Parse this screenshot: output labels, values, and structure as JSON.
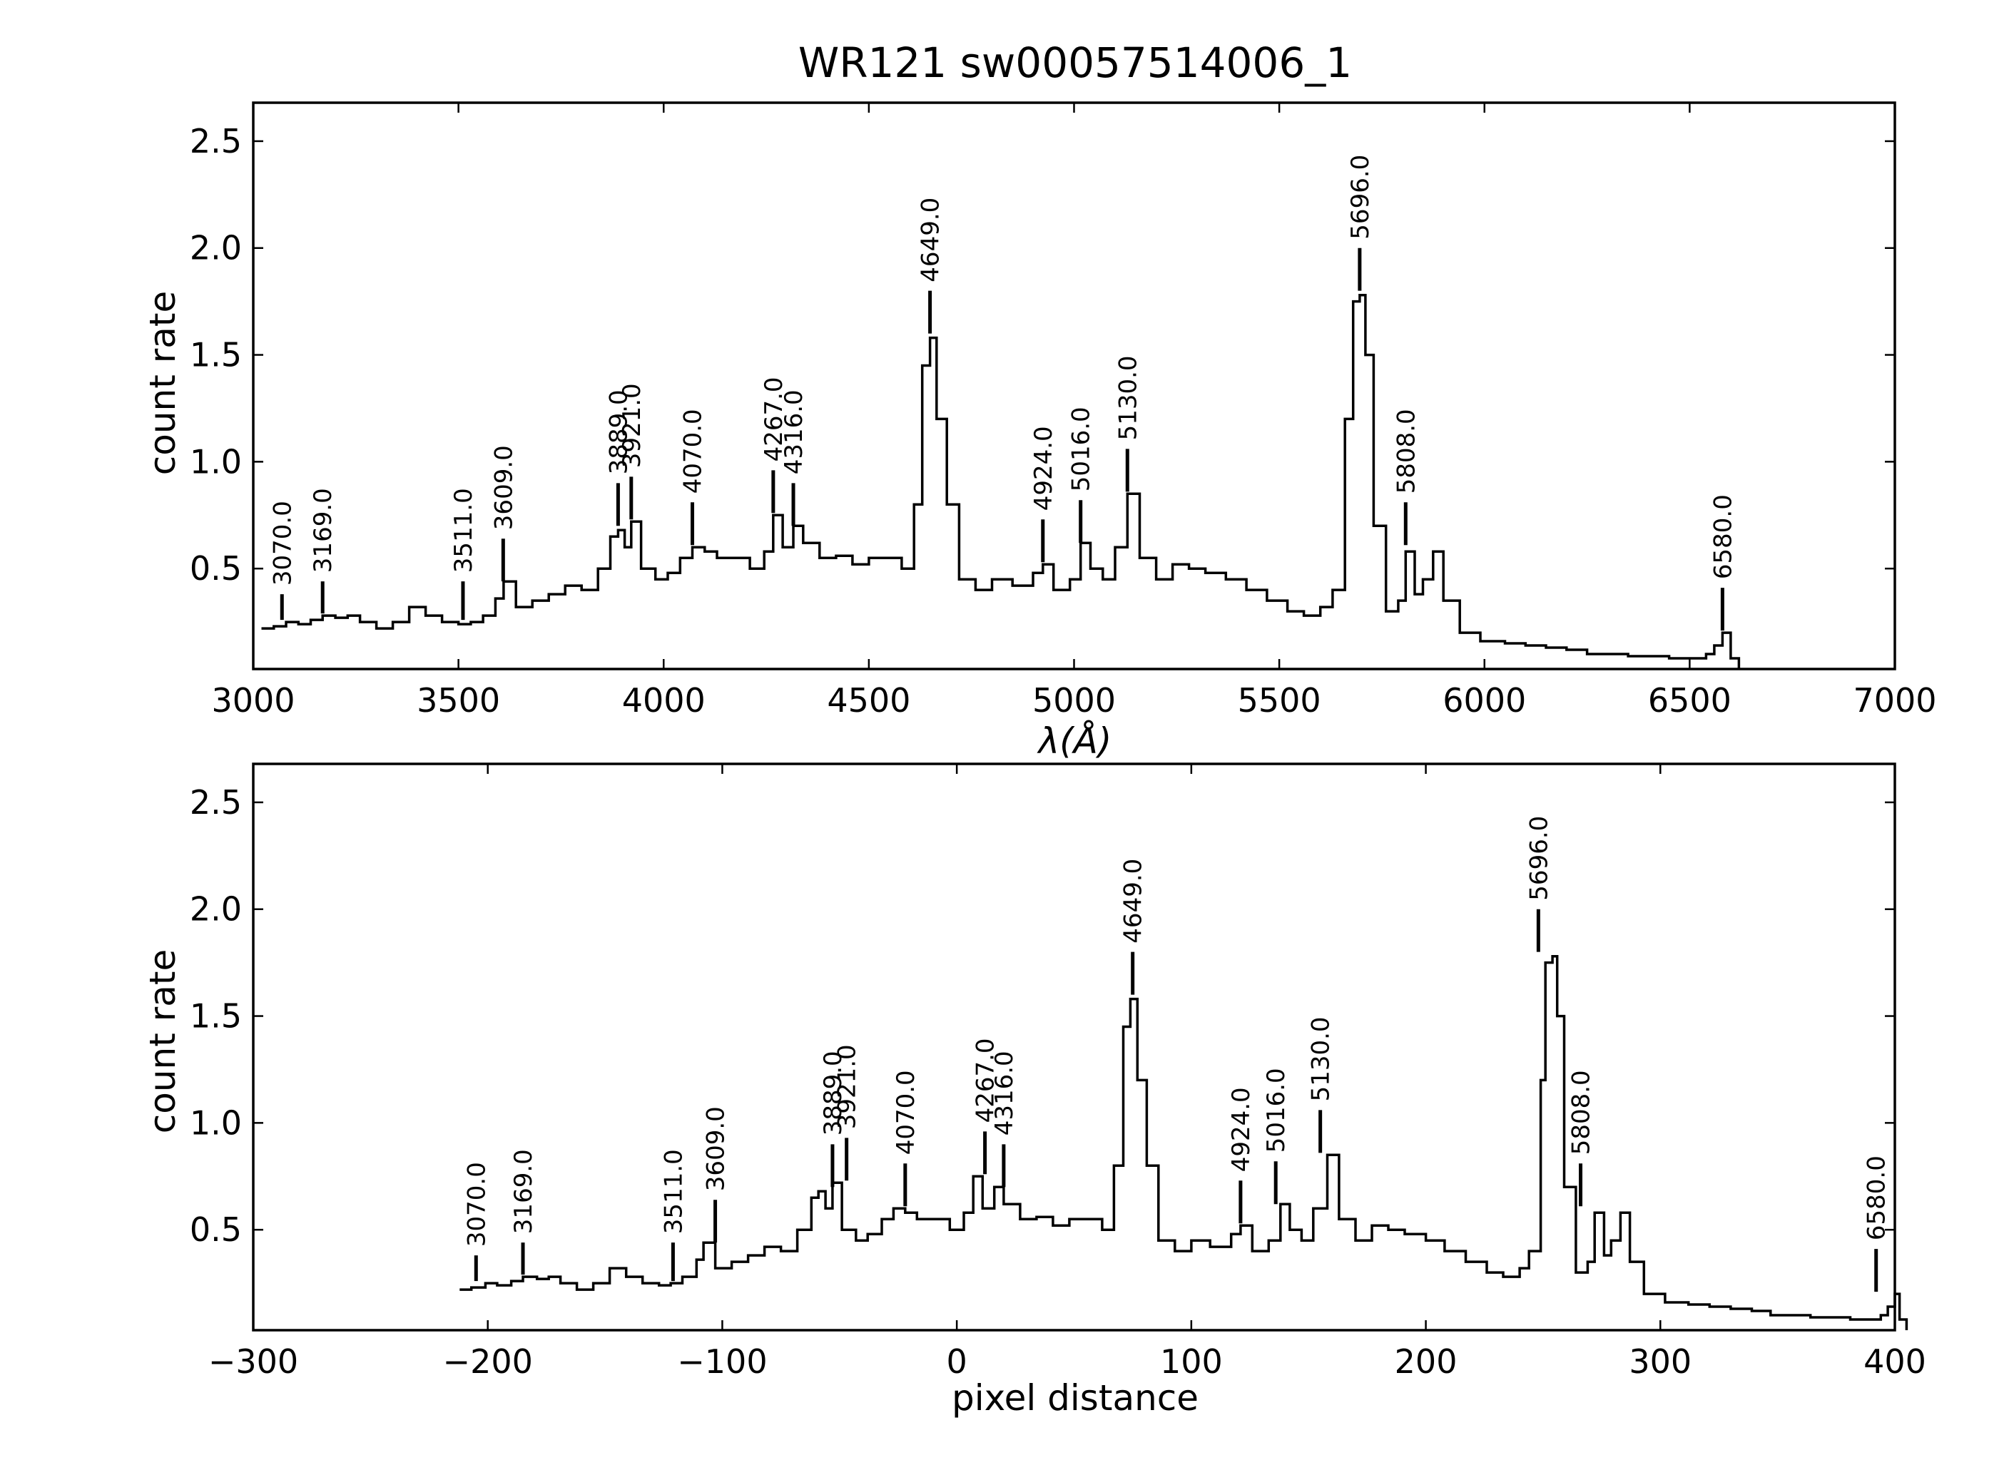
{
  "chart_data": [
    {
      "type": "line",
      "title": "WR121  sw00057514006_1",
      "xlabel": "λ(Å)",
      "ylabel": "count rate",
      "xlim": [
        3000,
        7000
      ],
      "ylim": [
        0.03,
        2.68
      ],
      "xticks": [
        3000,
        3500,
        4000,
        4500,
        5000,
        5500,
        6000,
        6500,
        7000
      ],
      "xtick_labels": [
        "3000",
        "3500",
        "4000",
        "4500",
        "5000",
        "5500",
        "6000",
        "6500",
        "7000"
      ],
      "yticks": [
        0.5,
        1.0,
        1.5,
        2.0,
        2.5
      ],
      "ytick_labels": [
        "0.5",
        "1.0",
        "1.5",
        "2.0",
        "2.5"
      ],
      "grid": false,
      "series": [
        {
          "x": [
            3020,
            3050,
            3080,
            3110,
            3140,
            3169,
            3200,
            3230,
            3260,
            3300,
            3340,
            3380,
            3420,
            3460,
            3500,
            3530,
            3560,
            3590,
            3610,
            3640,
            3680,
            3720,
            3760,
            3800,
            3840,
            3870,
            3889,
            3905,
            3921,
            3945,
            3980,
            4010,
            4040,
            4070,
            4100,
            4130,
            4170,
            4210,
            4245,
            4267,
            4290,
            4316,
            4340,
            4380,
            4420,
            4460,
            4500,
            4540,
            4580,
            4610,
            4630,
            4649,
            4665,
            4690,
            4720,
            4760,
            4800,
            4850,
            4900,
            4924,
            4950,
            4990,
            5016,
            5040,
            5070,
            5100,
            5130,
            5160,
            5200,
            5240,
            5280,
            5320,
            5370,
            5420,
            5470,
            5520,
            5560,
            5600,
            5630,
            5660,
            5680,
            5696,
            5710,
            5730,
            5760,
            5790,
            5808,
            5830,
            5850,
            5875,
            5900,
            5940,
            5990,
            6050,
            6100,
            6150,
            6200,
            6250,
            6300,
            6350,
            6400,
            6450,
            6500,
            6540,
            6560,
            6580,
            6600,
            6620
          ],
          "y": [
            0.22,
            0.23,
            0.25,
            0.24,
            0.26,
            0.28,
            0.27,
            0.28,
            0.25,
            0.22,
            0.25,
            0.32,
            0.28,
            0.25,
            0.24,
            0.25,
            0.28,
            0.36,
            0.44,
            0.32,
            0.35,
            0.38,
            0.42,
            0.4,
            0.5,
            0.65,
            0.68,
            0.6,
            0.72,
            0.5,
            0.45,
            0.48,
            0.55,
            0.6,
            0.58,
            0.55,
            0.55,
            0.5,
            0.58,
            0.75,
            0.6,
            0.7,
            0.62,
            0.55,
            0.56,
            0.52,
            0.55,
            0.55,
            0.5,
            0.8,
            1.45,
            1.58,
            1.2,
            0.8,
            0.45,
            0.4,
            0.45,
            0.42,
            0.48,
            0.52,
            0.4,
            0.45,
            0.62,
            0.5,
            0.45,
            0.6,
            0.85,
            0.55,
            0.45,
            0.52,
            0.5,
            0.48,
            0.45,
            0.4,
            0.35,
            0.3,
            0.28,
            0.32,
            0.4,
            1.2,
            1.75,
            1.78,
            1.5,
            0.7,
            0.3,
            0.35,
            0.58,
            0.38,
            0.45,
            0.58,
            0.35,
            0.2,
            0.16,
            0.15,
            0.14,
            0.13,
            0.12,
            0.1,
            0.1,
            0.09,
            0.09,
            0.08,
            0.08,
            0.1,
            0.14,
            0.2,
            0.08,
            0.03
          ]
        }
      ],
      "annotations": [
        {
          "x": 3070,
          "label": "3070.0",
          "tip": 0.38,
          "base": 0.26
        },
        {
          "x": 3169,
          "label": "3169.0",
          "tip": 0.44,
          "base": 0.29
        },
        {
          "x": 3511,
          "label": "3511.0",
          "tip": 0.44,
          "base": 0.26
        },
        {
          "x": 3609,
          "label": "3609.0",
          "tip": 0.64,
          "base": 0.44
        },
        {
          "x": 3889,
          "label": "3889.0",
          "tip": 0.9,
          "base": 0.7
        },
        {
          "x": 3921,
          "label": "3921.0",
          "tip": 0.93,
          "base": 0.73
        },
        {
          "x": 4070,
          "label": "4070.0",
          "tip": 0.81,
          "base": 0.61
        },
        {
          "x": 4267,
          "label": "4267.0",
          "tip": 0.96,
          "base": 0.76
        },
        {
          "x": 4316,
          "label": "4316.0",
          "tip": 0.9,
          "base": 0.7
        },
        {
          "x": 4649,
          "label": "4649.0",
          "tip": 1.8,
          "base": 1.6
        },
        {
          "x": 4924,
          "label": "4924.0",
          "tip": 0.73,
          "base": 0.53
        },
        {
          "x": 5016,
          "label": "5016.0",
          "tip": 0.82,
          "base": 0.62
        },
        {
          "x": 5130,
          "label": "5130.0",
          "tip": 1.06,
          "base": 0.86
        },
        {
          "x": 5696,
          "label": "5696.0",
          "tip": 2.0,
          "base": 1.8
        },
        {
          "x": 5808,
          "label": "5808.0",
          "tip": 0.81,
          "base": 0.61
        },
        {
          "x": 6580,
          "label": "6580.0",
          "tip": 0.41,
          "base": 0.21
        }
      ]
    },
    {
      "type": "line",
      "title": "",
      "xlabel": "pixel distance",
      "ylabel": "count rate",
      "xlim": [
        -300,
        400
      ],
      "ylim": [
        0.03,
        2.68
      ],
      "xticks": [
        -300,
        -200,
        -100,
        0,
        100,
        200,
        300,
        400
      ],
      "xtick_labels": [
        "−300",
        "−200",
        "−100",
        "0",
        "100",
        "200",
        "300",
        "400"
      ],
      "yticks": [
        0.5,
        1.0,
        1.5,
        2.0,
        2.5
      ],
      "ytick_labels": [
        "0.5",
        "1.0",
        "1.5",
        "2.0",
        "2.5"
      ],
      "grid": false,
      "series": [
        {
          "x": [
            -212,
            -207,
            -201,
            -196,
            -190,
            -185,
            -179,
            -174,
            -169,
            -162,
            -155,
            -148,
            -141,
            -134,
            -127,
            -122,
            -117,
            -111,
            -108,
            -103,
            -96,
            -89,
            -82,
            -75,
            -68,
            -62,
            -59,
            -56,
            -53,
            -49,
            -43,
            -38,
            -32,
            -27,
            -22,
            -17,
            -10,
            -3,
            3,
            7,
            11,
            16,
            20,
            27,
            34,
            41,
            48,
            55,
            62,
            67,
            71,
            74,
            77,
            81,
            86,
            93,
            100,
            108,
            117,
            121,
            126,
            133,
            138,
            142,
            147,
            152,
            158,
            163,
            170,
            177,
            184,
            191,
            200,
            208,
            217,
            226,
            233,
            240,
            244,
            249,
            251,
            254,
            256,
            259,
            264,
            269,
            272,
            276,
            279,
            283,
            287,
            293,
            302,
            312,
            321,
            330,
            339,
            347,
            355,
            364,
            373,
            381,
            389,
            394,
            397,
            400,
            402,
            405
          ],
          "y": [
            0.22,
            0.23,
            0.25,
            0.24,
            0.26,
            0.28,
            0.27,
            0.28,
            0.25,
            0.22,
            0.25,
            0.32,
            0.28,
            0.25,
            0.24,
            0.25,
            0.28,
            0.36,
            0.44,
            0.32,
            0.35,
            0.38,
            0.42,
            0.4,
            0.5,
            0.65,
            0.68,
            0.6,
            0.72,
            0.5,
            0.45,
            0.48,
            0.55,
            0.6,
            0.58,
            0.55,
            0.55,
            0.5,
            0.58,
            0.75,
            0.6,
            0.7,
            0.62,
            0.55,
            0.56,
            0.52,
            0.55,
            0.55,
            0.5,
            0.8,
            1.45,
            1.58,
            1.2,
            0.8,
            0.45,
            0.4,
            0.45,
            0.42,
            0.48,
            0.52,
            0.4,
            0.45,
            0.62,
            0.5,
            0.45,
            0.6,
            0.85,
            0.55,
            0.45,
            0.52,
            0.5,
            0.48,
            0.45,
            0.4,
            0.35,
            0.3,
            0.28,
            0.32,
            0.4,
            1.2,
            1.75,
            1.78,
            1.5,
            0.7,
            0.3,
            0.35,
            0.58,
            0.38,
            0.45,
            0.58,
            0.35,
            0.2,
            0.16,
            0.15,
            0.14,
            0.13,
            0.12,
            0.1,
            0.1,
            0.09,
            0.09,
            0.08,
            0.08,
            0.1,
            0.14,
            0.2,
            0.08,
            0.03
          ]
        }
      ],
      "annotations": [
        {
          "x": -205,
          "label": "3070.0",
          "tip": 0.38,
          "base": 0.26
        },
        {
          "x": -185,
          "label": "3169.0",
          "tip": 0.44,
          "base": 0.29
        },
        {
          "x": -121,
          "label": "3511.0",
          "tip": 0.44,
          "base": 0.26
        },
        {
          "x": -103,
          "label": "3609.0",
          "tip": 0.64,
          "base": 0.44
        },
        {
          "x": -53,
          "label": "3889.0",
          "tip": 0.9,
          "base": 0.7
        },
        {
          "x": -47,
          "label": "3921.0",
          "tip": 0.93,
          "base": 0.73
        },
        {
          "x": -22,
          "label": "4070.0",
          "tip": 0.81,
          "base": 0.61
        },
        {
          "x": 12,
          "label": "4267.0",
          "tip": 0.96,
          "base": 0.76
        },
        {
          "x": 20,
          "label": "4316.0",
          "tip": 0.9,
          "base": 0.7
        },
        {
          "x": 75,
          "label": "4649.0",
          "tip": 1.8,
          "base": 1.6
        },
        {
          "x": 121,
          "label": "4924.0",
          "tip": 0.73,
          "base": 0.53
        },
        {
          "x": 136,
          "label": "5016.0",
          "tip": 0.82,
          "base": 0.62
        },
        {
          "x": 155,
          "label": "5130.0",
          "tip": 1.06,
          "base": 0.86
        },
        {
          "x": 248,
          "label": "5696.0",
          "tip": 2.0,
          "base": 1.8
        },
        {
          "x": 266,
          "label": "5808.0",
          "tip": 0.81,
          "base": 0.61
        },
        {
          "x": 392,
          "label": "6580.0",
          "tip": 0.41,
          "base": 0.21
        }
      ]
    }
  ]
}
